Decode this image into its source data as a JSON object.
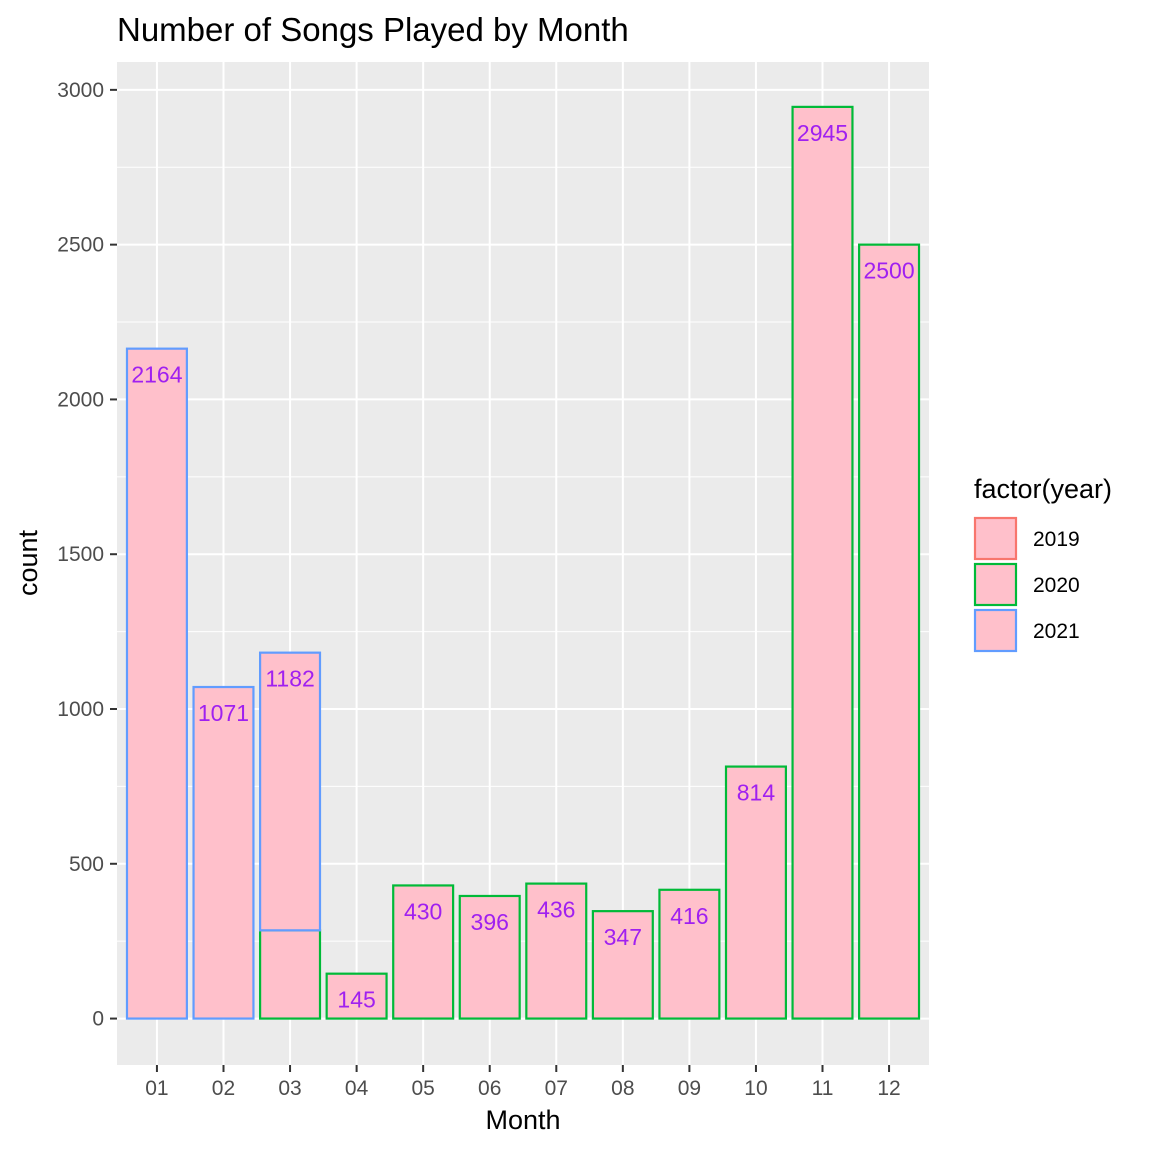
{
  "chart_data": {
    "type": "bar",
    "stacked": true,
    "title": "Number of Songs Played by Month",
    "xlabel": "Month",
    "ylabel": "count",
    "categories": [
      "01",
      "02",
      "03",
      "04",
      "05",
      "06",
      "07",
      "08",
      "09",
      "10",
      "11",
      "12"
    ],
    "ylim": [
      -150,
      3090
    ],
    "yticks": [
      0,
      500,
      1000,
      1500,
      2000,
      2500,
      3000
    ],
    "fill_color": "#ffc0cb",
    "label_color": "#a020f0",
    "panel_background": "#ebebeb",
    "grid": true,
    "series": [
      {
        "name": "2019",
        "color": "#f8766d",
        "values": [
          0,
          0,
          0,
          0,
          0,
          0,
          0,
          0,
          0,
          0,
          0,
          0
        ]
      },
      {
        "name": "2020",
        "color": "#00ba38",
        "values": [
          0,
          0,
          285,
          145,
          430,
          396,
          436,
          347,
          416,
          814,
          2945,
          2500
        ]
      },
      {
        "name": "2021",
        "color": "#619cff",
        "values": [
          2164,
          1071,
          897,
          0,
          0,
          0,
          0,
          0,
          0,
          0,
          0,
          0
        ]
      }
    ],
    "totals": [
      2164,
      1071,
      1182,
      145,
      430,
      396,
      436,
      347,
      416,
      814,
      2945,
      2500
    ],
    "legend": {
      "title": "factor(year)",
      "placement": "right",
      "entries": [
        "2019",
        "2020",
        "2021"
      ]
    }
  }
}
